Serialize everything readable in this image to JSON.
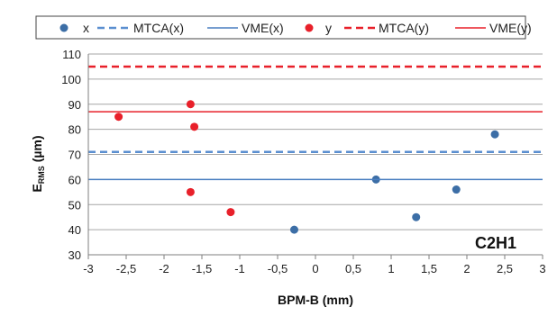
{
  "chart_data": {
    "type": "scatter",
    "title": "",
    "annotation": "C2H1",
    "xlabel": "BPM-B (mm)",
    "ylabel_main": "E",
    "ylabel_sub": "RMS",
    "ylabel_unit": " (µm)",
    "xlim": [
      -3,
      3
    ],
    "ylim": [
      30,
      110
    ],
    "x_ticks": [
      -3,
      -2.5,
      -2,
      -1.5,
      -1,
      -0.5,
      0,
      0.5,
      1,
      1.5,
      2,
      2.5,
      3
    ],
    "x_tick_labels": [
      "-3",
      "-2,5",
      "-2",
      "-1,5",
      "-1",
      "-0,5",
      "0",
      "0,5",
      "1",
      "1,5",
      "2",
      "2,5",
      "3"
    ],
    "y_ticks": [
      30,
      40,
      50,
      60,
      70,
      80,
      90,
      100,
      110
    ],
    "y_tick_labels": [
      "30",
      "40",
      "50",
      "60",
      "70",
      "80",
      "90",
      "100",
      "110"
    ],
    "grid": "horizontal",
    "legend_position": "top",
    "series": [
      {
        "name": "x",
        "kind": "points",
        "color": "#3c6ea6",
        "points": [
          [
            -0.28,
            40
          ],
          [
            0.8,
            60
          ],
          [
            1.33,
            45
          ],
          [
            1.86,
            56
          ],
          [
            2.37,
            78
          ]
        ]
      },
      {
        "name": "MTCA(x)",
        "kind": "hline",
        "style": "dashed",
        "color": "#5b8fd0",
        "y": 71
      },
      {
        "name": "VME(x)",
        "kind": "hline",
        "style": "solid",
        "color": "#4a7fc1",
        "y": 60
      },
      {
        "name": "y",
        "kind": "points",
        "color": "#e8202a",
        "points": [
          [
            -2.6,
            85
          ],
          [
            -1.65,
            90
          ],
          [
            -1.6,
            81
          ],
          [
            -1.65,
            55
          ],
          [
            -1.12,
            47
          ]
        ]
      },
      {
        "name": "MTCA(y)",
        "kind": "hline",
        "style": "dashed",
        "color": "#e8202a",
        "y": 105
      },
      {
        "name": "VME(y)",
        "kind": "hline",
        "style": "solid",
        "color": "#e8202a",
        "y": 87
      }
    ]
  }
}
